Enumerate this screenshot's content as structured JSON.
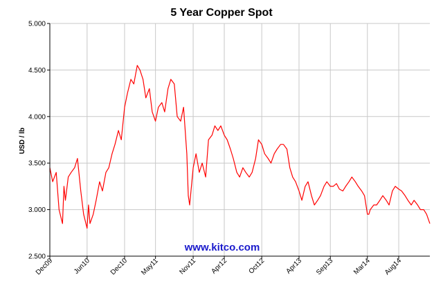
{
  "chart_data": {
    "type": "line",
    "title": "5 Year Copper Spot",
    "xlabel": "",
    "ylabel": "USD / lb",
    "ylim": [
      2.5,
      5.0
    ],
    "xlim": [
      "2009-12-01",
      "2014-12-31"
    ],
    "y_ticks": [
      "2.500",
      "3.000",
      "3.500",
      "4.000",
      "4.500",
      "5.000"
    ],
    "x_ticks": [
      {
        "label": "Dec09",
        "date": "2009-12-01"
      },
      {
        "label": "Jun10",
        "date": "2010-06-01"
      },
      {
        "label": "Dec10",
        "date": "2010-12-01"
      },
      {
        "label": "May11",
        "date": "2011-05-01"
      },
      {
        "label": "Nov11",
        "date": "2011-11-01"
      },
      {
        "label": "Apr12",
        "date": "2012-04-01"
      },
      {
        "label": "Oct12",
        "date": "2012-10-01"
      },
      {
        "label": "Apr13",
        "date": "2013-04-01"
      },
      {
        "label": "Sep13",
        "date": "2013-09-01"
      },
      {
        "label": "Mar14",
        "date": "2014-03-01"
      },
      {
        "label": "Aug14",
        "date": "2014-08-01"
      }
    ],
    "grid": true,
    "legend": "none",
    "watermark": "www.kitco.com",
    "colors": {
      "line": "#ff0000",
      "grid": "#c8c8c8",
      "watermark": "#1a1acc",
      "axis": "#000000"
    },
    "series": [
      {
        "x": [
          "2009-12-01",
          "2009-12-15",
          "2010-01-01",
          "2010-01-15",
          "2010-02-01",
          "2010-02-08",
          "2010-02-15",
          "2010-03-01",
          "2010-03-15",
          "2010-04-01",
          "2010-04-15",
          "2010-05-01",
          "2010-05-15",
          "2010-06-01",
          "2010-06-08",
          "2010-06-15",
          "2010-07-01",
          "2010-07-15",
          "2010-08-01",
          "2010-08-15",
          "2010-09-01",
          "2010-09-15",
          "2010-10-01",
          "2010-10-15",
          "2010-11-01",
          "2010-11-15",
          "2010-12-01",
          "2010-12-15",
          "2011-01-01",
          "2011-01-15",
          "2011-02-01",
          "2011-02-14",
          "2011-03-01",
          "2011-03-15",
          "2011-04-01",
          "2011-04-15",
          "2011-05-01",
          "2011-05-15",
          "2011-06-01",
          "2011-06-15",
          "2011-07-01",
          "2011-07-15",
          "2011-08-01",
          "2011-08-15",
          "2011-09-01",
          "2011-09-15",
          "2011-10-01",
          "2011-10-08",
          "2011-10-15",
          "2011-11-01",
          "2011-11-15",
          "2011-12-01",
          "2011-12-15",
          "2012-01-01",
          "2012-01-15",
          "2012-02-01",
          "2012-02-15",
          "2012-03-01",
          "2012-03-15",
          "2012-04-01",
          "2012-04-15",
          "2012-05-01",
          "2012-05-15",
          "2012-06-01",
          "2012-06-15",
          "2012-07-01",
          "2012-07-15",
          "2012-08-01",
          "2012-08-15",
          "2012-09-01",
          "2012-09-15",
          "2012-10-01",
          "2012-10-15",
          "2012-11-01",
          "2012-11-15",
          "2012-12-01",
          "2012-12-15",
          "2013-01-01",
          "2013-01-15",
          "2013-02-01",
          "2013-02-15",
          "2013-03-01",
          "2013-03-15",
          "2013-04-01",
          "2013-04-15",
          "2013-05-01",
          "2013-05-15",
          "2013-06-01",
          "2013-06-15",
          "2013-07-01",
          "2013-07-15",
          "2013-08-01",
          "2013-08-15",
          "2013-09-01",
          "2013-09-15",
          "2013-10-01",
          "2013-10-15",
          "2013-11-01",
          "2013-11-15",
          "2013-12-01",
          "2013-12-15",
          "2014-01-01",
          "2014-01-15",
          "2014-02-01",
          "2014-02-15",
          "2014-03-01",
          "2014-03-08",
          "2014-03-15",
          "2014-04-01",
          "2014-04-15",
          "2014-05-01",
          "2014-05-15",
          "2014-06-01",
          "2014-06-15",
          "2014-07-01",
          "2014-07-15",
          "2014-08-01",
          "2014-08-15",
          "2014-09-01",
          "2014-09-15",
          "2014-10-01",
          "2014-10-15",
          "2014-11-01",
          "2014-11-15",
          "2014-12-01",
          "2014-12-15",
          "2014-12-31"
        ],
        "values": [
          3.45,
          3.3,
          3.4,
          3.0,
          2.85,
          3.25,
          3.1,
          3.35,
          3.4,
          3.45,
          3.55,
          3.2,
          2.95,
          2.8,
          3.05,
          2.85,
          2.95,
          3.1,
          3.3,
          3.2,
          3.4,
          3.45,
          3.6,
          3.7,
          3.85,
          3.75,
          4.1,
          4.25,
          4.4,
          4.35,
          4.55,
          4.5,
          4.4,
          4.2,
          4.3,
          4.05,
          3.95,
          4.1,
          4.15,
          4.05,
          4.3,
          4.4,
          4.35,
          4.0,
          3.95,
          4.1,
          3.6,
          3.15,
          3.05,
          3.45,
          3.6,
          3.4,
          3.5,
          3.35,
          3.75,
          3.8,
          3.9,
          3.85,
          3.9,
          3.8,
          3.75,
          3.65,
          3.55,
          3.4,
          3.35,
          3.45,
          3.4,
          3.35,
          3.4,
          3.55,
          3.75,
          3.7,
          3.6,
          3.55,
          3.5,
          3.6,
          3.65,
          3.7,
          3.7,
          3.65,
          3.45,
          3.35,
          3.3,
          3.2,
          3.1,
          3.25,
          3.3,
          3.15,
          3.05,
          3.1,
          3.15,
          3.25,
          3.3,
          3.25,
          3.25,
          3.28,
          3.22,
          3.2,
          3.25,
          3.3,
          3.35,
          3.3,
          3.25,
          3.2,
          3.15,
          2.95,
          2.95,
          3.0,
          3.05,
          3.05,
          3.1,
          3.15,
          3.1,
          3.05,
          3.2,
          3.25,
          3.22,
          3.2,
          3.15,
          3.1,
          3.05,
          3.1,
          3.05,
          3.0,
          3.0,
          2.95,
          2.85
        ]
      }
    ]
  }
}
